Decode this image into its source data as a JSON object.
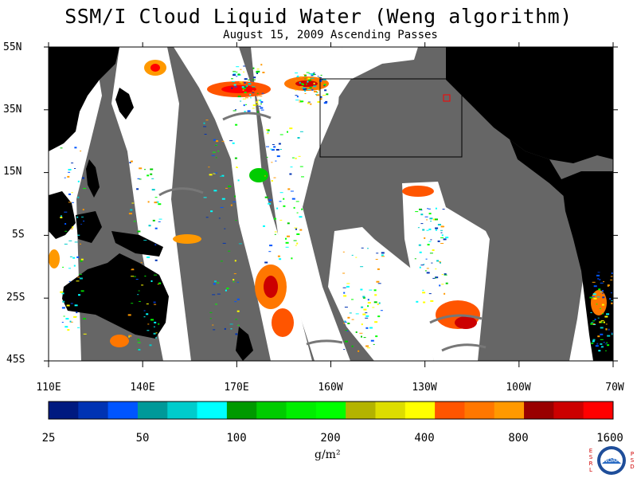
{
  "title": "SSM/I Cloud Liquid Water (Weng algorithm)",
  "subtitle": "August 15, 2009  Ascending Passes",
  "lat_labels": [
    "55N",
    "35N",
    "15N",
    "5S",
    "25S",
    "45S"
  ],
  "lon_labels": [
    "110E",
    "140E",
    "170E",
    "160W",
    "130W",
    "100W",
    "70W"
  ],
  "colorbar": {
    "labels": [
      "25",
      "50",
      "100",
      "200",
      "400",
      "800",
      "1600"
    ],
    "colors": [
      "#001a80",
      "#0033b3",
      "#0055ff",
      "#009999",
      "#00cccc",
      "#00ffff",
      "#009900",
      "#00cc00",
      "#00ee00",
      "#00ff00",
      "#b3b300",
      "#dddd00",
      "#ffff00",
      "#ff5500",
      "#ff7700",
      "#ff9900",
      "#990000",
      "#cc0000",
      "#ff0000"
    ],
    "units": "g/m²"
  },
  "colors": {
    "land": "#000000",
    "no_data": "#666666",
    "clear_ocean": "#ffffff"
  },
  "logo": {
    "left_letters": "ESRL",
    "right_letters": "PSD",
    "center": "NOAA"
  }
}
